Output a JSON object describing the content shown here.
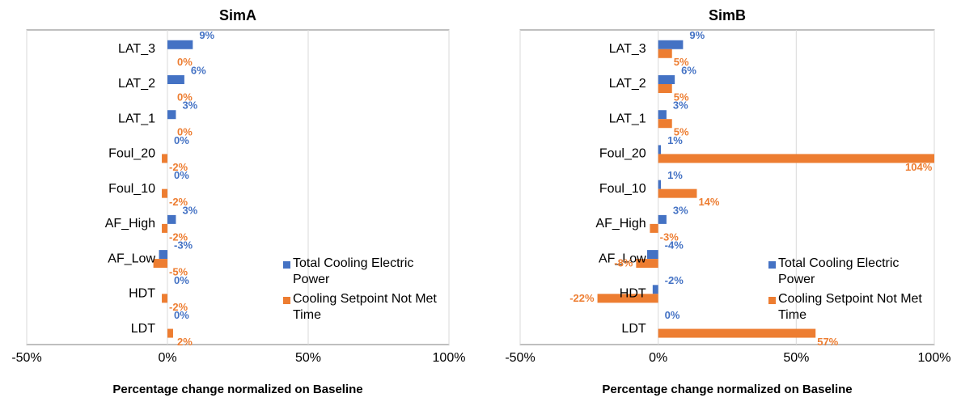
{
  "chart_data": [
    {
      "type": "hbar",
      "title": "SimA",
      "x_label": "Percentage change normalized on Baseline",
      "categories": [
        "LAT_3",
        "LAT_2",
        "LAT_1",
        "Foul_20",
        "Foul_10",
        "AF_High",
        "AF_Low",
        "HDT",
        "LDT"
      ],
      "series": [
        {
          "name": "Total Cooling Electric Power",
          "color": "#4472c4",
          "values": [
            9,
            6,
            3,
            0,
            0,
            3,
            -3,
            0,
            0
          ],
          "value_labels": [
            "9%",
            "6%",
            "3%",
            "0%",
            "0%",
            "3%",
            "-3%",
            "0%",
            "0%"
          ]
        },
        {
          "name": "Cooling Setpoint Not Met Time",
          "color": "#ed7d31",
          "values": [
            0,
            0,
            0,
            -2,
            -2,
            -2,
            -5,
            -2,
            2
          ],
          "value_labels": [
            "0%",
            "0%",
            "0%",
            "-2%",
            "-2%",
            "-2%",
            "-5%",
            "-2%",
            "2%"
          ]
        }
      ],
      "xlim": [
        -50,
        100
      ],
      "xticks": [
        {
          "value": -50,
          "label": "-50%"
        },
        {
          "value": 0,
          "label": "0%"
        },
        {
          "value": 50,
          "label": "50%"
        },
        {
          "value": 100,
          "label": "100%"
        }
      ],
      "grid": true,
      "legend": "lower right"
    },
    {
      "type": "hbar",
      "title": "SimB",
      "x_label": "Percentage change normalized on Baseline",
      "categories": [
        "LAT_3",
        "LAT_2",
        "LAT_1",
        "Foul_20",
        "Foul_10",
        "AF_High",
        "AF_Low",
        "HDT",
        "LDT"
      ],
      "series": [
        {
          "name": "Total Cooling Electric Power",
          "color": "#4472c4",
          "values": [
            9,
            6,
            3,
            1,
            1,
            3,
            -4,
            -2,
            0
          ],
          "value_labels": [
            "9%",
            "6%",
            "3%",
            "1%",
            "1%",
            "3%",
            "-4%",
            "-2%",
            "0%"
          ]
        },
        {
          "name": "Cooling Setpoint Not Met Time",
          "color": "#ed7d31",
          "values": [
            5,
            5,
            5,
            104,
            14,
            -3,
            -8,
            -22,
            57
          ],
          "value_labels": [
            "5%",
            "5%",
            "5%",
            "104%",
            "14%",
            "-3%",
            "-8%",
            "-22%",
            "57%"
          ]
        }
      ],
      "xlim": [
        -50,
        100
      ],
      "xticks": [
        {
          "value": -50,
          "label": "-50%"
        },
        {
          "value": 0,
          "label": "0%"
        },
        {
          "value": 50,
          "label": "50%"
        },
        {
          "value": 100,
          "label": "100%"
        }
      ],
      "grid": true,
      "legend": "lower right"
    }
  ]
}
